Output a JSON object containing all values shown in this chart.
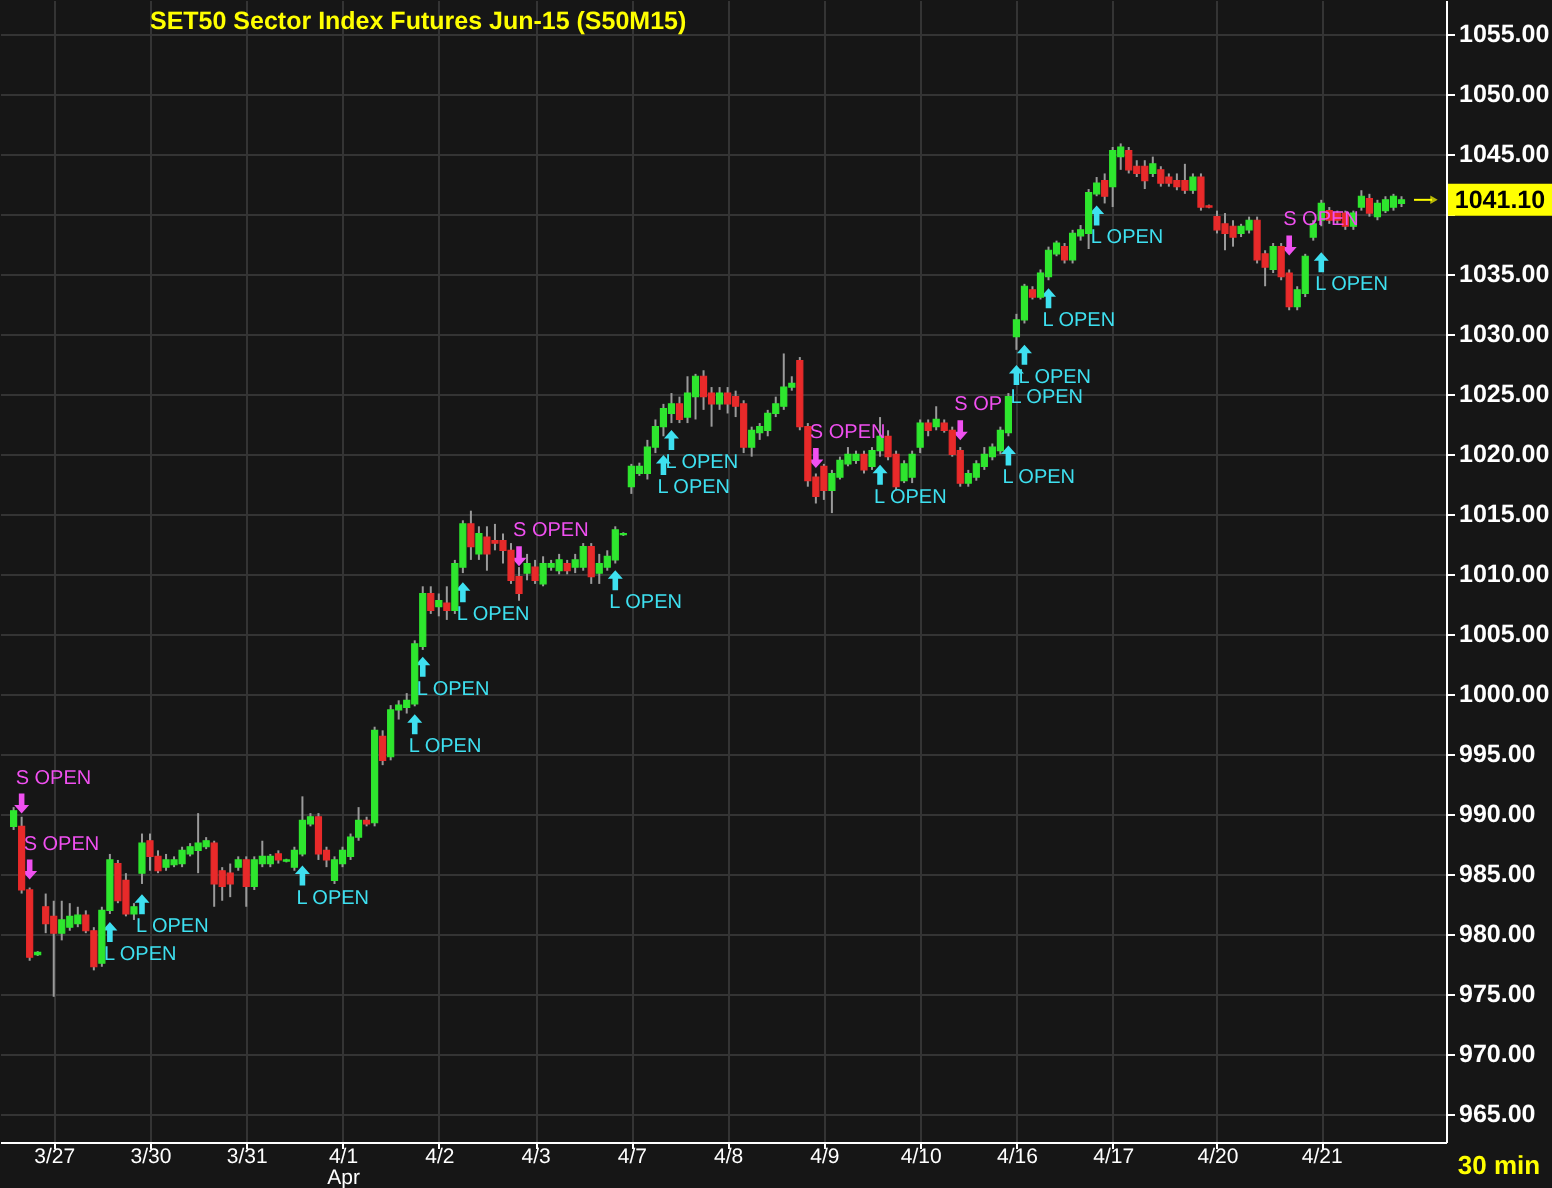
{
  "chart_data": {
    "type": "candlestick",
    "title": "SET50 Sector Index Futures Jun-15 (S50M15)",
    "categories": [
      null,
      null,
      null,
      null,
      null,
      "3/27",
      null,
      null,
      null,
      null,
      null,
      null,
      null,
      null,
      null,
      null,
      null,
      "3/30",
      null,
      null,
      null,
      null,
      null,
      null,
      null,
      null,
      null,
      null,
      null,
      "3/31",
      null,
      null,
      null,
      null,
      null,
      null,
      null,
      null,
      null,
      null,
      null,
      "4/1\nApr",
      null,
      null,
      null,
      null,
      null,
      null,
      null,
      null,
      null,
      null,
      null,
      "4/2",
      null,
      null,
      null,
      null,
      null,
      null,
      null,
      null,
      null,
      null,
      null,
      "4/3",
      null,
      null,
      null,
      null,
      null,
      null,
      null,
      null,
      null,
      null,
      null,
      "4/7",
      null,
      null,
      null,
      null,
      null,
      null,
      null,
      null,
      null,
      null,
      null,
      "4/8",
      null,
      null,
      null,
      null,
      null,
      null,
      null,
      null,
      null,
      null,
      null,
      "4/9",
      null,
      null,
      null,
      null,
      null,
      null,
      null,
      null,
      null,
      null,
      null,
      "4/10",
      null,
      null,
      null,
      null,
      null,
      null,
      null,
      null,
      null,
      null,
      null,
      "4/16",
      null,
      null,
      null,
      null,
      null,
      null,
      null,
      null,
      null,
      null,
      null,
      "4/17",
      null,
      null,
      null,
      null,
      null,
      null,
      null,
      null,
      null,
      null,
      null,
      null,
      "4/20",
      null,
      null,
      null,
      null,
      null,
      null,
      null,
      null,
      null,
      null,
      null,
      null,
      "4/21",
      null,
      null,
      null,
      null,
      null,
      null,
      null,
      null,
      null,
      null
    ],
    "ohlc": [
      [
        988.9,
        990.5,
        988.6,
        990.2
      ],
      [
        988.9,
        989.7,
        983.3,
        983.6
      ],
      [
        983.6,
        983.8,
        977.7,
        978.0
      ],
      [
        978.2,
        978.5,
        978.1,
        978.4
      ],
      [
        982.2,
        983.3,
        980.0,
        980.8
      ],
      [
        981.4,
        982.7,
        974.7,
        980.0
      ],
      [
        980.0,
        982.7,
        979.4,
        981.1
      ],
      [
        980.5,
        982.5,
        980.2,
        981.4
      ],
      [
        980.8,
        982.2,
        980.5,
        981.5
      ],
      [
        981.5,
        981.9,
        980.0,
        980.2
      ],
      [
        980.2,
        980.5,
        976.9,
        977.2
      ],
      [
        977.5,
        982.2,
        977.2,
        981.9
      ],
      [
        981.9,
        986.6,
        981.6,
        986.1
      ],
      [
        985.8,
        986.1,
        982.5,
        982.7
      ],
      [
        984.4,
        985.0,
        981.4,
        981.6
      ],
      [
        981.6,
        982.5,
        981.1,
        982.2
      ],
      [
        985.0,
        988.3,
        984.1,
        987.5
      ],
      [
        987.7,
        988.3,
        985.2,
        986.4
      ],
      [
        986.4,
        986.9,
        985.0,
        985.2
      ],
      [
        985.5,
        986.6,
        985.2,
        986.1
      ],
      [
        985.7,
        986.4,
        985.5,
        986.1
      ],
      [
        985.8,
        987.2,
        985.5,
        986.9
      ],
      [
        986.6,
        987.5,
        986.4,
        987.2
      ],
      [
        986.9,
        990.0,
        985.0,
        987.5
      ],
      [
        987.2,
        988.0,
        987.0,
        987.7
      ],
      [
        987.5,
        987.7,
        982.2,
        984.1
      ],
      [
        985.2,
        985.5,
        982.7,
        983.9
      ],
      [
        985.0,
        985.8,
        983.0,
        984.1
      ],
      [
        985.5,
        986.4,
        985.2,
        986.1
      ],
      [
        986.1,
        986.4,
        982.2,
        983.9
      ],
      [
        983.9,
        986.4,
        983.6,
        986.1
      ],
      [
        985.8,
        987.7,
        985.5,
        986.4
      ],
      [
        985.8,
        986.6,
        985.5,
        986.4
      ],
      [
        986.6,
        986.9,
        985.8,
        986.1
      ],
      [
        986.0,
        986.2,
        985.9,
        986.1
      ],
      [
        985.5,
        987.2,
        985.2,
        986.9
      ],
      [
        986.6,
        991.4,
        986.4,
        989.4
      ],
      [
        989.1,
        990.0,
        988.9,
        989.7
      ],
      [
        989.7,
        990.0,
        986.1,
        986.6
      ],
      [
        986.9,
        987.2,
        985.5,
        986.1
      ],
      [
        984.4,
        986.4,
        984.1,
        986.1
      ],
      [
        985.8,
        987.2,
        985.5,
        986.9
      ],
      [
        986.4,
        988.3,
        986.1,
        988.0
      ],
      [
        988.0,
        990.5,
        987.7,
        989.4
      ],
      [
        989.4,
        989.7,
        988.9,
        989.1
      ],
      [
        989.2,
        997.2,
        988.9,
        996.9
      ],
      [
        996.4,
        996.9,
        994.0,
        994.4
      ],
      [
        994.7,
        999.0,
        994.4,
        998.6
      ],
      [
        998.6,
        999.4,
        997.8,
        999.0
      ],
      [
        998.8,
        1000.0,
        998.3,
        999.4
      ],
      [
        999.1,
        1004.4,
        998.9,
        1004.1
      ],
      [
        1003.9,
        1008.9,
        1003.6,
        1008.3
      ],
      [
        1008.3,
        1008.9,
        1006.6,
        1006.9
      ],
      [
        1007.2,
        1008.3,
        1006.4,
        1007.7
      ],
      [
        1007.5,
        1008.9,
        1006.1,
        1006.9
      ],
      [
        1006.9,
        1011.1,
        1006.6,
        1010.8
      ],
      [
        1010.5,
        1014.4,
        1010.0,
        1014.1
      ],
      [
        1014.1,
        1015.2,
        1011.1,
        1012.2
      ],
      [
        1011.6,
        1013.9,
        1011.1,
        1013.3
      ],
      [
        1013.0,
        1013.9,
        1010.2,
        1011.6
      ],
      [
        1012.7,
        1014.1,
        1011.9,
        1012.5
      ],
      [
        1012.7,
        1013.3,
        1010.8,
        1011.9
      ],
      [
        1011.9,
        1012.5,
        1009.1,
        1009.4
      ],
      [
        1009.7,
        1010.5,
        1007.7,
        1008.3
      ],
      [
        1010.0,
        1011.6,
        1009.4,
        1010.8
      ],
      [
        1010.5,
        1011.1,
        1009.1,
        1009.4
      ],
      [
        1009.1,
        1011.4,
        1008.9,
        1010.8
      ],
      [
        1010.5,
        1011.1,
        1010.2,
        1010.8
      ],
      [
        1010.2,
        1011.6,
        1009.9,
        1011.1
      ],
      [
        1010.8,
        1011.1,
        1009.9,
        1010.2
      ],
      [
        1010.5,
        1011.6,
        1010.0,
        1011.1
      ],
      [
        1010.5,
        1012.5,
        1010.2,
        1012.2
      ],
      [
        1012.2,
        1012.5,
        1009.1,
        1009.7
      ],
      [
        1010.0,
        1011.6,
        1009.1,
        1010.8
      ],
      [
        1010.5,
        1011.9,
        1010.2,
        1011.4
      ],
      [
        1011.1,
        1013.9,
        1010.8,
        1013.6
      ],
      [
        1013.2,
        1013.4,
        1013.1,
        1013.3
      ],
      [
        1017.2,
        1019.1,
        1016.6,
        1018.9
      ],
      [
        1018.3,
        1019.2,
        1018.1,
        1018.9
      ],
      [
        1018.3,
        1021.1,
        1017.8,
        1020.5
      ],
      [
        1020.5,
        1022.8,
        1020.0,
        1022.2
      ],
      [
        1022.2,
        1024.1,
        1021.4,
        1023.7
      ],
      [
        1023.3,
        1025.0,
        1022.5,
        1024.1
      ],
      [
        1024.1,
        1024.7,
        1022.5,
        1022.8
      ],
      [
        1023.0,
        1026.4,
        1022.5,
        1025.0
      ],
      [
        1024.7,
        1026.6,
        1022.8,
        1026.4
      ],
      [
        1026.4,
        1026.9,
        1023.6,
        1024.7
      ],
      [
        1025.0,
        1025.5,
        1022.2,
        1024.1
      ],
      [
        1024.1,
        1025.5,
        1023.6,
        1025.0
      ],
      [
        1025.0,
        1025.5,
        1023.3,
        1024.1
      ],
      [
        1024.7,
        1025.2,
        1023.0,
        1023.9
      ],
      [
        1024.1,
        1024.4,
        1020.0,
        1020.5
      ],
      [
        1020.5,
        1022.2,
        1019.7,
        1021.9
      ],
      [
        1021.7,
        1022.5,
        1021.1,
        1022.2
      ],
      [
        1021.9,
        1023.6,
        1021.4,
        1023.3
      ],
      [
        1023.3,
        1024.7,
        1023.0,
        1024.1
      ],
      [
        1023.9,
        1028.3,
        1023.6,
        1025.5
      ],
      [
        1025.5,
        1026.4,
        1025.2,
        1025.8
      ],
      [
        1027.7,
        1028.0,
        1021.9,
        1022.2
      ],
      [
        1022.2,
        1022.5,
        1017.2,
        1017.7
      ],
      [
        1018.0,
        1018.3,
        1015.8,
        1016.4
      ],
      [
        1018.9,
        1019.1,
        1016.1,
        1016.9
      ],
      [
        1016.9,
        1018.6,
        1015.0,
        1018.3
      ],
      [
        1018.0,
        1019.7,
        1017.8,
        1019.4
      ],
      [
        1019.1,
        1020.5,
        1018.9,
        1019.9
      ],
      [
        1019.4,
        1020.2,
        1019.1,
        1019.9
      ],
      [
        1019.9,
        1020.2,
        1018.3,
        1018.6
      ],
      [
        1018.9,
        1020.5,
        1018.6,
        1020.2
      ],
      [
        1020.2,
        1023.0,
        1019.7,
        1021.4
      ],
      [
        1021.4,
        1021.9,
        1019.4,
        1019.7
      ],
      [
        1019.9,
        1020.2,
        1016.9,
        1017.2
      ],
      [
        1017.7,
        1019.4,
        1017.5,
        1019.1
      ],
      [
        1018.0,
        1020.2,
        1017.5,
        1019.9
      ],
      [
        1020.5,
        1022.8,
        1020.0,
        1022.5
      ],
      [
        1022.5,
        1022.8,
        1021.4,
        1021.9
      ],
      [
        1022.2,
        1023.9,
        1021.9,
        1022.8
      ],
      [
        1022.5,
        1022.8,
        1021.7,
        1021.9
      ],
      [
        1021.9,
        1022.2,
        1019.7,
        1019.9
      ],
      [
        1020.2,
        1020.5,
        1017.2,
        1017.5
      ],
      [
        1017.5,
        1018.6,
        1017.2,
        1018.3
      ],
      [
        1018.0,
        1019.4,
        1017.7,
        1019.1
      ],
      [
        1018.9,
        1020.5,
        1018.6,
        1019.9
      ],
      [
        1019.7,
        1020.8,
        1019.4,
        1020.5
      ],
      [
        1020.2,
        1022.2,
        1019.9,
        1021.9
      ],
      [
        1021.7,
        1025.0,
        1021.4,
        1024.7
      ],
      [
        1029.7,
        1031.6,
        1028.6,
        1031.1
      ],
      [
        1031.1,
        1034.1,
        1030.8,
        1033.9
      ],
      [
        1033.6,
        1033.9,
        1032.8,
        1033.0
      ],
      [
        1033.0,
        1035.3,
        1032.8,
        1035.0
      ],
      [
        1034.7,
        1037.2,
        1034.4,
        1036.9
      ],
      [
        1036.6,
        1037.7,
        1036.4,
        1037.5
      ],
      [
        1037.2,
        1037.5,
        1035.8,
        1036.1
      ],
      [
        1036.1,
        1038.6,
        1035.8,
        1038.3
      ],
      [
        1038.1,
        1039.0,
        1037.7,
        1038.6
      ],
      [
        1038.3,
        1042.0,
        1037.0,
        1041.7
      ],
      [
        1041.6,
        1043.0,
        1041.4,
        1042.5
      ],
      [
        1042.7,
        1043.3,
        1040.8,
        1041.4
      ],
      [
        1042.2,
        1045.5,
        1040.5,
        1045.2
      ],
      [
        1044.7,
        1045.8,
        1043.6,
        1045.5
      ],
      [
        1045.2,
        1045.5,
        1043.3,
        1043.6
      ],
      [
        1043.9,
        1044.4,
        1043.0,
        1043.3
      ],
      [
        1043.9,
        1044.4,
        1042.0,
        1042.7
      ],
      [
        1043.3,
        1044.7,
        1043.0,
        1044.1
      ],
      [
        1043.6,
        1043.9,
        1042.2,
        1042.5
      ],
      [
        1043.0,
        1043.3,
        1042.2,
        1042.5
      ],
      [
        1042.7,
        1043.3,
        1041.9,
        1042.2
      ],
      [
        1042.7,
        1044.1,
        1041.6,
        1041.9
      ],
      [
        1041.9,
        1043.3,
        1041.6,
        1043.0
      ],
      [
        1043.0,
        1043.3,
        1040.2,
        1040.5
      ],
      [
        1040.6,
        1040.7,
        1040.4,
        1040.5
      ],
      [
        1039.7,
        1040.2,
        1038.3,
        1038.6
      ],
      [
        1039.1,
        1040.0,
        1036.9,
        1038.3
      ],
      [
        1038.9,
        1039.4,
        1037.2,
        1038.0
      ],
      [
        1038.3,
        1039.1,
        1038.0,
        1038.9
      ],
      [
        1038.6,
        1039.7,
        1038.3,
        1039.4
      ],
      [
        1039.4,
        1039.7,
        1035.8,
        1036.1
      ],
      [
        1036.6,
        1036.9,
        1033.9,
        1035.5
      ],
      [
        1035.3,
        1037.5,
        1035.0,
        1037.2
      ],
      [
        1037.2,
        1037.5,
        1034.4,
        1034.7
      ],
      [
        1035.0,
        1035.3,
        1031.9,
        1032.2
      ],
      [
        1032.2,
        1033.9,
        1031.9,
        1033.6
      ],
      [
        1033.3,
        1036.6,
        1033.0,
        1036.4
      ],
      [
        1038.0,
        1039.4,
        1037.7,
        1039.1
      ],
      [
        1039.4,
        1041.1,
        1038.9,
        1040.8
      ],
      [
        1040.2,
        1040.5,
        1039.1,
        1039.4
      ],
      [
        1040.0,
        1040.2,
        1039.1,
        1039.4
      ],
      [
        1040.0,
        1040.2,
        1038.6,
        1038.9
      ],
      [
        1038.9,
        1040.2,
        1038.6,
        1040.0
      ],
      [
        1040.5,
        1041.9,
        1040.2,
        1041.4
      ],
      [
        1041.2,
        1041.6,
        1039.7,
        1040.0
      ],
      [
        1039.7,
        1041.1,
        1039.4,
        1040.8
      ],
      [
        1040.2,
        1041.4,
        1040.0,
        1041.1
      ],
      [
        1040.5,
        1041.6,
        1040.2,
        1041.4
      ],
      [
        1040.8,
        1041.4,
        1040.5,
        1041.1
      ]
    ],
    "colors": [
      "#2ee62e",
      "#e82a2a",
      "#e82a2a",
      "#2ee62e",
      "#e82a2a",
      "#e82a2a",
      "#2ee62e",
      "#2ee62e",
      "#2ee62e",
      "#e82a2a",
      "#e82a2a",
      "#2ee62e",
      "#2ee62e",
      "#e82a2a",
      "#e82a2a",
      "#2ee62e",
      "#2ee62e",
      "#e82a2a",
      "#e82a2a",
      "#2ee62e",
      "#2ee62e",
      "#2ee62e",
      "#2ee62e",
      "#2ee62e",
      "#2ee62e",
      "#e82a2a",
      "#e82a2a",
      "#e82a2a",
      "#2ee62e",
      "#e82a2a",
      "#2ee62e",
      "#2ee62e",
      "#2ee62e",
      "#e82a2a",
      "#2ee62e",
      "#2ee62e",
      "#2ee62e",
      "#2ee62e",
      "#e82a2a",
      "#e82a2a",
      "#2ee62e",
      "#2ee62e",
      "#2ee62e",
      "#2ee62e",
      "#e82a2a",
      "#2ee62e",
      "#e82a2a",
      "#2ee62e",
      "#2ee62e",
      "#2ee62e",
      "#2ee62e",
      "#2ee62e",
      "#e82a2a",
      "#2ee62e",
      "#e82a2a",
      "#2ee62e",
      "#2ee62e",
      "#e82a2a",
      "#2ee62e",
      "#e82a2a",
      "#e82a2a",
      "#e82a2a",
      "#e82a2a",
      "#e82a2a",
      "#2ee62e",
      "#e82a2a",
      "#2ee62e",
      "#2ee62e",
      "#2ee62e",
      "#e82a2a",
      "#2ee62e",
      "#2ee62e",
      "#e82a2a",
      "#2ee62e",
      "#2ee62e",
      "#2ee62e",
      "#2ee62e",
      "#2ee62e",
      "#2ee62e",
      "#2ee62e",
      "#2ee62e",
      "#2ee62e",
      "#2ee62e",
      "#e82a2a",
      "#2ee62e",
      "#2ee62e",
      "#e82a2a",
      "#e82a2a",
      "#2ee62e",
      "#e82a2a",
      "#e82a2a",
      "#e82a2a",
      "#2ee62e",
      "#2ee62e",
      "#2ee62e",
      "#2ee62e",
      "#2ee62e",
      "#2ee62e",
      "#e82a2a",
      "#e82a2a",
      "#e82a2a",
      "#e82a2a",
      "#2ee62e",
      "#2ee62e",
      "#2ee62e",
      "#2ee62e",
      "#e82a2a",
      "#2ee62e",
      "#2ee62e",
      "#e82a2a",
      "#e82a2a",
      "#2ee62e",
      "#2ee62e",
      "#2ee62e",
      "#e82a2a",
      "#2ee62e",
      "#e82a2a",
      "#e82a2a",
      "#e82a2a",
      "#2ee62e",
      "#2ee62e",
      "#2ee62e",
      "#2ee62e",
      "#2ee62e",
      "#2ee62e",
      "#2ee62e",
      "#2ee62e",
      "#e82a2a",
      "#2ee62e",
      "#2ee62e",
      "#2ee62e",
      "#e82a2a",
      "#2ee62e",
      "#2ee62e",
      "#2ee62e",
      "#2ee62e",
      "#e82a2a",
      "#2ee62e",
      "#2ee62e",
      "#e82a2a",
      "#e82a2a",
      "#e82a2a",
      "#2ee62e",
      "#e82a2a",
      "#e82a2a",
      "#e82a2a",
      "#e82a2a",
      "#2ee62e",
      "#e82a2a",
      "#e82a2a",
      "#e82a2a",
      "#e82a2a",
      "#e82a2a",
      "#2ee62e",
      "#2ee62e",
      "#e82a2a",
      "#e82a2a",
      "#2ee62e",
      "#e82a2a",
      "#e82a2a",
      "#2ee62e",
      "#2ee62e",
      "#2ee62e",
      "#2ee62e",
      "#e82a2a",
      "#e82a2a",
      "#e82a2a",
      "#2ee62e",
      "#2ee62e",
      "#e82a2a",
      "#2ee62e",
      "#2ee62e",
      "#2ee62e",
      "#2ee62e"
    ],
    "color": "#9a9a9a",
    "series": [
      {
        "type": "scatter",
        "color": "#3ee0f0",
        "marker": "triangle",
        "values": [
          null,
          null,
          null,
          null,
          null,
          null,
          null,
          null,
          null,
          null,
          null,
          null,
          980.1,
          null,
          null,
          null,
          982.4,
          null,
          null,
          null,
          null,
          null,
          null,
          null,
          null,
          null,
          null,
          null,
          null,
          null,
          null,
          null,
          null,
          null,
          null,
          null,
          984.8,
          null,
          null,
          null,
          null,
          null,
          null,
          null,
          null,
          null,
          null,
          null,
          null,
          null,
          997.4,
          1002.2,
          null,
          null,
          null,
          null,
          1008.4,
          null,
          null,
          null,
          null,
          null,
          null,
          null,
          null,
          null,
          null,
          null,
          null,
          null,
          null,
          null,
          null,
          null,
          null,
          1009.4,
          null,
          null,
          null,
          null,
          null,
          1019.0,
          1021.1,
          null,
          null,
          null,
          null,
          null,
          null,
          null,
          null,
          null,
          null,
          null,
          null,
          null,
          null,
          null,
          null,
          null,
          null,
          null,
          null,
          null,
          null,
          null,
          null,
          null,
          1018.2,
          null,
          null,
          null,
          null,
          null,
          null,
          null,
          null,
          null,
          null,
          null,
          null,
          null,
          null,
          null,
          1019.8,
          1026.5,
          1028.2,
          null,
          null,
          1032.9,
          null,
          null,
          null,
          null,
          null,
          1039.8,
          null,
          null,
          null,
          null,
          null,
          null,
          null,
          null,
          null,
          null,
          null,
          null,
          null,
          null,
          null,
          null,
          null,
          null,
          null,
          null,
          null,
          null,
          null,
          null,
          null,
          null,
          null,
          1035.9,
          null,
          null,
          null,
          null,
          null,
          null,
          null,
          null,
          null,
          null
        ],
        "value_labels": [
          null,
          null,
          null,
          null,
          null,
          null,
          null,
          null,
          null,
          null,
          null,
          null,
          "L OPEN",
          null,
          null,
          null,
          "L OPEN",
          null,
          null,
          null,
          null,
          null,
          null,
          null,
          null,
          null,
          null,
          null,
          null,
          null,
          null,
          null,
          null,
          null,
          null,
          null,
          "L OPEN",
          null,
          null,
          null,
          null,
          null,
          null,
          null,
          null,
          null,
          null,
          null,
          null,
          null,
          "L OPEN",
          "L OPEN",
          null,
          null,
          null,
          null,
          "L OPEN",
          null,
          null,
          null,
          null,
          null,
          null,
          null,
          null,
          null,
          null,
          null,
          null,
          null,
          null,
          null,
          null,
          null,
          null,
          "L OPEN",
          null,
          null,
          null,
          null,
          null,
          "L OPEN",
          "L OPEN",
          null,
          null,
          null,
          null,
          null,
          null,
          null,
          null,
          null,
          null,
          null,
          null,
          null,
          null,
          null,
          null,
          null,
          null,
          null,
          null,
          null,
          null,
          null,
          null,
          null,
          "L OPEN",
          null,
          null,
          null,
          null,
          null,
          null,
          null,
          null,
          null,
          null,
          null,
          null,
          null,
          null,
          null,
          "L OPEN",
          "L OPEN",
          "L OPEN",
          null,
          null,
          "L OPEN",
          null,
          null,
          null,
          null,
          null,
          "L OPEN",
          null,
          null,
          null,
          null,
          null,
          null,
          null,
          null,
          null,
          null,
          null,
          null,
          null,
          null,
          null,
          null,
          null,
          null,
          null,
          null,
          null,
          null,
          null,
          null,
          null,
          null,
          null,
          "L OPEN",
          null,
          null,
          null,
          null,
          null,
          null,
          null,
          null,
          null,
          null
        ]
      },
      {
        "type": "scatter",
        "color": "#f050f0",
        "marker": "triangle",
        "values": [
          null,
          990.8,
          985.3,
          null,
          null,
          null,
          null,
          null,
          null,
          null,
          null,
          null,
          null,
          null,
          null,
          null,
          null,
          null,
          null,
          null,
          null,
          null,
          null,
          null,
          null,
          null,
          null,
          null,
          null,
          null,
          null,
          null,
          null,
          null,
          null,
          null,
          null,
          null,
          null,
          null,
          null,
          null,
          null,
          null,
          null,
          null,
          null,
          null,
          null,
          null,
          null,
          null,
          null,
          null,
          null,
          null,
          null,
          null,
          null,
          null,
          null,
          null,
          null,
          1011.4,
          null,
          null,
          null,
          null,
          null,
          null,
          null,
          null,
          null,
          null,
          null,
          null,
          null,
          null,
          null,
          null,
          null,
          null,
          null,
          null,
          null,
          null,
          null,
          null,
          null,
          null,
          null,
          null,
          null,
          null,
          null,
          null,
          null,
          null,
          null,
          null,
          1019.6,
          null,
          null,
          null,
          null,
          null,
          null,
          null,
          null,
          null,
          null,
          null,
          null,
          null,
          null,
          null,
          null,
          null,
          1021.9,
          null,
          null,
          null,
          null,
          null,
          null,
          null,
          null,
          null,
          null,
          null,
          null,
          null,
          null,
          null,
          null,
          null,
          null,
          null,
          null,
          null,
          null,
          null,
          null,
          null,
          null,
          null,
          null,
          null,
          null,
          null,
          null,
          null,
          null,
          null,
          null,
          null,
          null,
          null,
          null,
          1037.3,
          null,
          null,
          null,
          null,
          null,
          null,
          null,
          null,
          null,
          null,
          null,
          null,
          null,
          null
        ],
        "value_labels": [
          null,
          "S OPEN",
          "S OPEN",
          null,
          null,
          null,
          null,
          null,
          null,
          null,
          null,
          null,
          null,
          null,
          null,
          null,
          null,
          null,
          null,
          null,
          null,
          null,
          null,
          null,
          null,
          null,
          null,
          null,
          null,
          null,
          null,
          null,
          null,
          null,
          null,
          null,
          null,
          null,
          null,
          null,
          null,
          null,
          null,
          null,
          null,
          null,
          null,
          null,
          null,
          null,
          null,
          null,
          null,
          null,
          null,
          null,
          null,
          null,
          null,
          null,
          null,
          null,
          null,
          "S OPEN",
          null,
          null,
          null,
          null,
          null,
          null,
          null,
          null,
          null,
          null,
          null,
          null,
          null,
          null,
          null,
          null,
          null,
          null,
          null,
          null,
          null,
          null,
          null,
          null,
          null,
          null,
          null,
          null,
          null,
          null,
          null,
          null,
          null,
          null,
          null,
          null,
          "S OPEN",
          null,
          null,
          null,
          null,
          null,
          null,
          null,
          null,
          null,
          null,
          null,
          null,
          null,
          null,
          null,
          null,
          null,
          "S OP",
          null,
          null,
          null,
          null,
          null,
          null,
          null,
          null,
          null,
          null,
          null,
          null,
          null,
          null,
          null,
          null,
          null,
          null,
          null,
          null,
          null,
          null,
          null,
          null,
          null,
          null,
          null,
          null,
          null,
          null,
          null,
          null,
          null,
          null,
          null,
          null,
          null,
          null,
          null,
          null,
          "S OPEN",
          null,
          null,
          null,
          null,
          null,
          null,
          null,
          null,
          null,
          null,
          null,
          null,
          null,
          null
        ]
      }
    ],
    "ylim": [
      962.6,
      1057.75
    ],
    "yticks": [
      {
        "value": 965,
        "label": "965.00"
      },
      {
        "value": 970,
        "label": "970.00"
      },
      {
        "value": 975,
        "label": "975.00"
      },
      {
        "value": 980,
        "label": "980.00"
      },
      {
        "value": 985,
        "label": "985.00"
      },
      {
        "value": 990,
        "label": "990.00"
      },
      {
        "value": 995,
        "label": "995.00"
      },
      {
        "value": 1000,
        "label": "1000.00"
      },
      {
        "value": 1005,
        "label": "1005.00"
      },
      {
        "value": 1010,
        "label": "1010.00"
      },
      {
        "value": 1015,
        "label": "1015.00"
      },
      {
        "value": 1020,
        "label": "1020.00"
      },
      {
        "value": 1025,
        "label": "1025.00"
      },
      {
        "value": 1030,
        "label": "1030.00"
      },
      {
        "value": 1035,
        "label": "1035.00"
      },
      {
        "value": 1040,
        "label": null
      },
      {
        "value": 1045,
        "label": "1045.00"
      },
      {
        "value": 1050,
        "label": "1050.00"
      },
      {
        "value": 1055,
        "label": "1055.00"
      }
    ],
    "grid": true,
    "ref_lines": [
      {
        "axis": "y",
        "value": 1041.1,
        "label": "1041.10",
        "color": "#ffff00"
      }
    ],
    "annotations": [
      "30 min"
    ]
  }
}
